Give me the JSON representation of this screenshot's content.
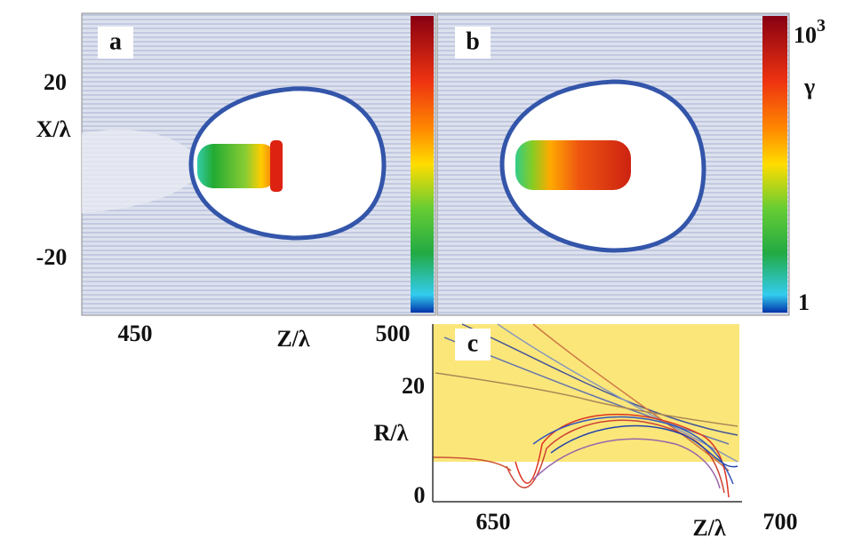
{
  "panel_a": {
    "letter": "a",
    "y_axis_label": "X/λ",
    "y_ticks": [
      "20",
      "-20"
    ],
    "x_axis_label": "Z/λ",
    "x_ticks": [
      "450",
      "500"
    ]
  },
  "panel_b": {
    "letter": "b",
    "colorbar": {
      "max_base": "10",
      "max_exponent": "3",
      "label": "γ",
      "min": "1"
    }
  },
  "panel_c": {
    "letter": "c",
    "y_axis_label": "R/λ",
    "y_ticks": [
      "20",
      "0"
    ],
    "x_axis_label": "Z/λ",
    "x_ticks": [
      "650",
      "700"
    ]
  }
}
